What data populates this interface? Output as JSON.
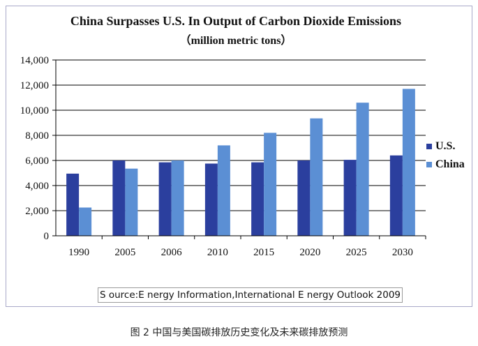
{
  "chart_data": {
    "type": "bar",
    "title": "China Surpasses U.S. In Output of Carbon Dioxide Emissions",
    "subtitle": "（million metric tons）",
    "categories": [
      "1990",
      "2005",
      "2006",
      "2010",
      "2015",
      "2020",
      "2025",
      "2030"
    ],
    "series": [
      {
        "name": "U.S.",
        "color": "#2b3f9e",
        "values": [
          4950,
          6000,
          5850,
          5750,
          5850,
          6000,
          6050,
          6400
        ]
      },
      {
        "name": "China",
        "color": "#5b8fd4",
        "values": [
          2250,
          5350,
          6000,
          7200,
          8200,
          9350,
          10600,
          11700
        ]
      }
    ],
    "y_ticks": [
      "0",
      "2,000",
      "4,000",
      "6,000",
      "8,000",
      "10,000",
      "12,000",
      "14,000"
    ],
    "ylim": [
      0,
      14000
    ],
    "grid": true,
    "legend_position": "right"
  },
  "source": "S ource:E nergy Information,International E nergy Outlook 2009",
  "caption": "图 2  中国与美国碳排放历史变化及未来碳排放预测"
}
